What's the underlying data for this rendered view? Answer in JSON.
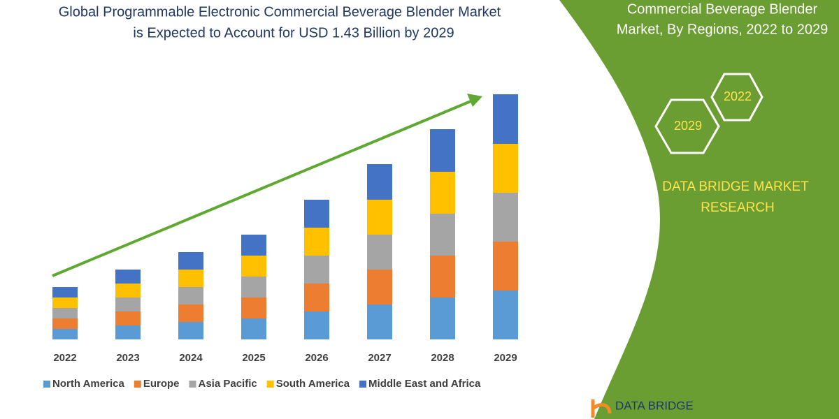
{
  "chart_data": {
    "type": "bar",
    "stacked": true,
    "title": [
      "Global Programmable Electronic Commercial Beverage Blender Market",
      "is Expected to Account for USD 1.43 Billion by 2029"
    ],
    "categories": [
      "2022",
      "2023",
      "2024",
      "2025",
      "2026",
      "2027",
      "2028",
      "2029"
    ],
    "series": [
      {
        "name": "North America",
        "color": "#5b9bd5",
        "values": [
          15,
          20,
          25,
          30,
          40,
          50,
          60,
          70
        ]
      },
      {
        "name": "Europe",
        "color": "#ed7d31",
        "values": [
          15,
          20,
          25,
          30,
          40,
          50,
          60,
          70
        ]
      },
      {
        "name": "Asia Pacific",
        "color": "#a5a5a5",
        "values": [
          15,
          20,
          25,
          30,
          40,
          50,
          60,
          70
        ]
      },
      {
        "name": "South America",
        "color": "#ffc000",
        "values": [
          15,
          20,
          25,
          30,
          40,
          50,
          60,
          70
        ]
      },
      {
        "name": "Middle East and Africa",
        "color": "#4472c4",
        "values": [
          15,
          20,
          25,
          30,
          40,
          51,
          61,
          71
        ]
      }
    ],
    "ylim": [
      0,
      356
    ]
  },
  "panel": {
    "title": [
      "Commercial Beverage Blender",
      "Market, By Regions, 2022 to 2029"
    ],
    "hexagons": [
      "2022",
      "2029"
    ],
    "brand": [
      "DATA BRIDGE MARKET",
      "RESEARCH"
    ],
    "logo": "DATA BRIDGE"
  }
}
